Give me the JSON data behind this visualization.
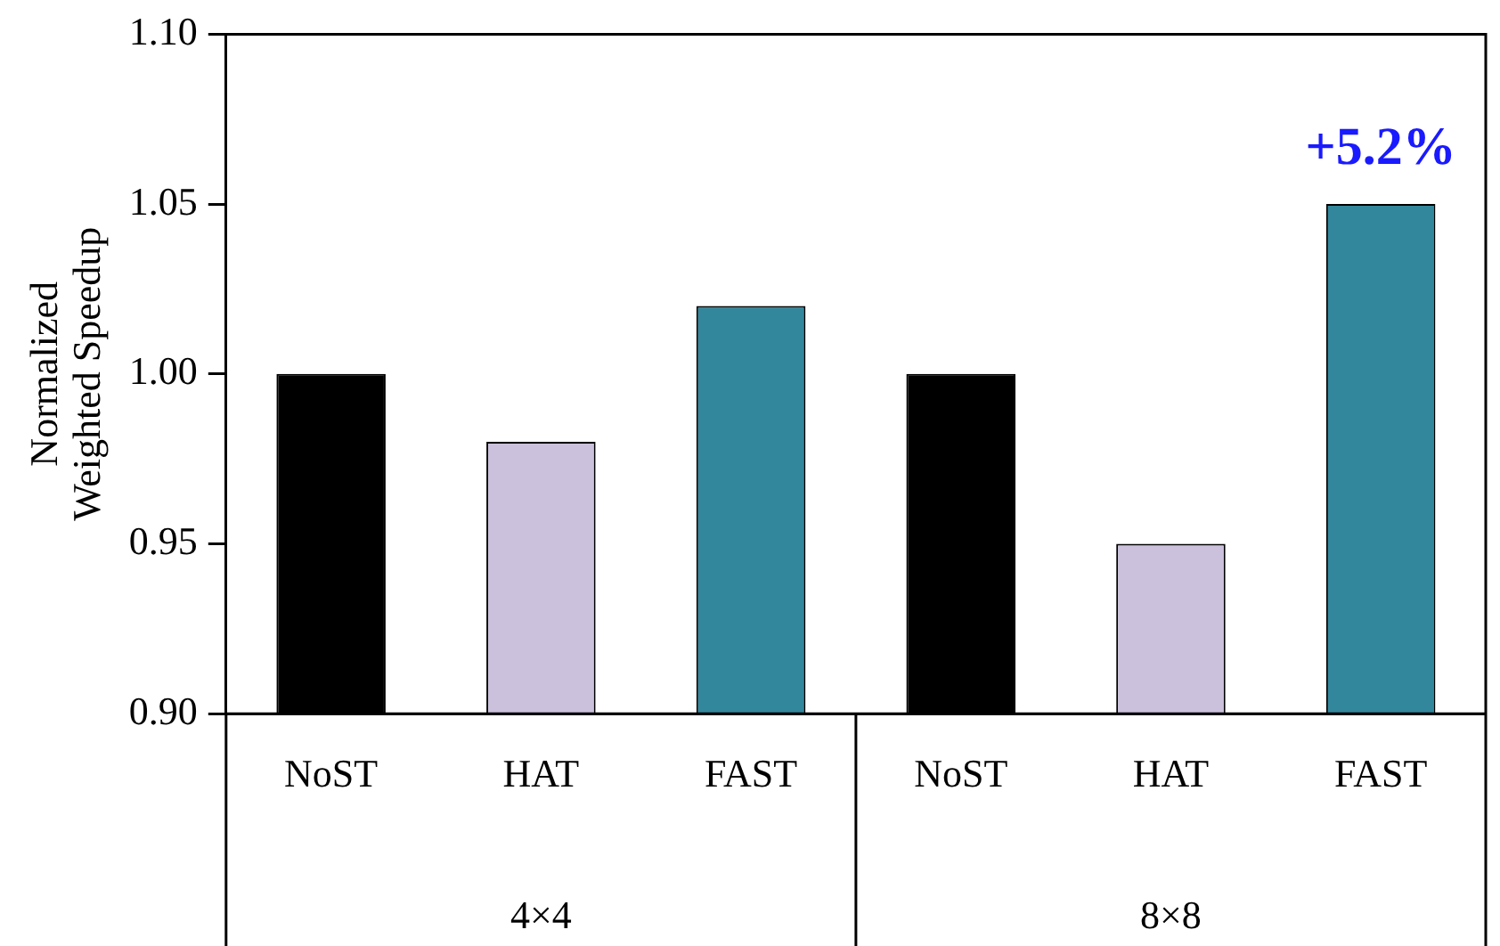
{
  "chart_data": {
    "type": "bar",
    "ylabel": "Normalized Weighted Speedup",
    "categories": [
      "NoST",
      "HAT",
      "FAST",
      "NoST",
      "HAT",
      "FAST"
    ],
    "values": [
      1.0,
      0.98,
      1.02,
      1.0,
      0.95,
      1.05
    ],
    "colors": [
      "#000000",
      "#cbc1dc",
      "#33879c",
      "#000000",
      "#cbc1dc",
      "#33879c"
    ],
    "ylim": [
      0.9,
      1.1
    ],
    "yticks": [
      {
        "value": 0.9,
        "label": "0.90"
      },
      {
        "value": 0.95,
        "label": "0.95"
      },
      {
        "value": 1.0,
        "label": "1.00"
      },
      {
        "value": 1.05,
        "label": "1.05"
      },
      {
        "value": 1.1,
        "label": "1.10"
      }
    ],
    "annotations": [
      "4×4",
      "8×8",
      "+5.2%"
    ],
    "grid": false,
    "legend": false
  }
}
